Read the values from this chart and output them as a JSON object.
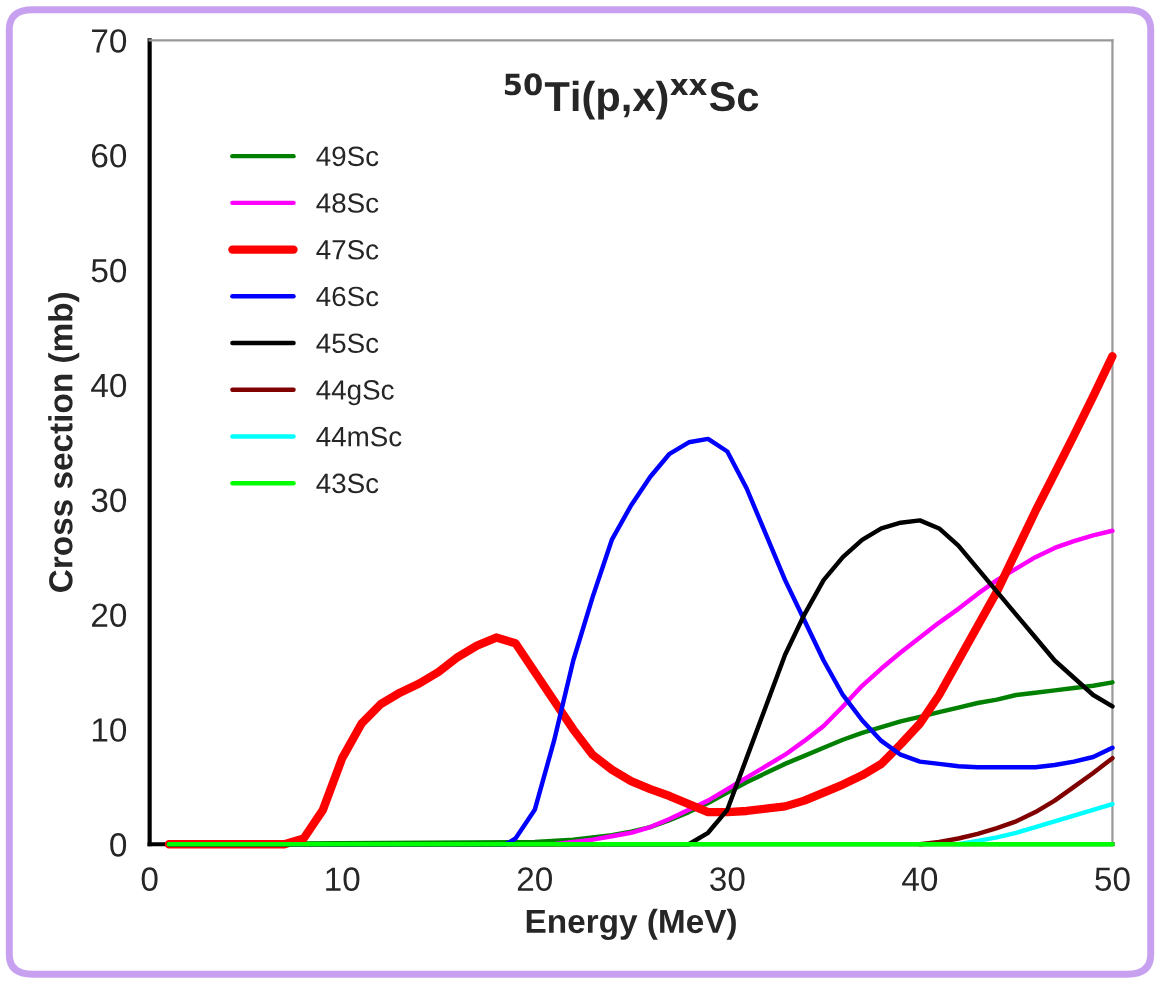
{
  "chart_data": {
    "type": "line",
    "title": "$^{50}$Ti(p,x)$^{xx}$Sc",
    "xlabel": "Energy (MeV)",
    "ylabel": "Cross section (mb)",
    "xlim": [
      0,
      50
    ],
    "xticks": [
      0,
      10,
      20,
      30,
      40,
      50
    ],
    "ylim": [
      0,
      70
    ],
    "yticks": [
      0,
      10,
      20,
      30,
      40,
      50,
      60,
      70
    ],
    "grid": false,
    "legend": "top left",
    "marker": "none",
    "line_style": "solid",
    "series": [
      {
        "name": "49Sc",
        "color": "#008000",
        "x": [
          1,
          20,
          22,
          23,
          24,
          25,
          26,
          27,
          28,
          29,
          30,
          31,
          32,
          33,
          34,
          35,
          36,
          37,
          38,
          39,
          40,
          41,
          42,
          43,
          44,
          45,
          46,
          47,
          48,
          49,
          50
        ],
        "values": [
          0,
          0.2,
          0.4,
          0.6,
          0.8,
          1.1,
          1.5,
          2.1,
          2.8,
          3.6,
          4.5,
          5.4,
          6.2,
          7,
          7.7,
          8.4,
          9.1,
          9.7,
          10.2,
          10.7,
          11.1,
          11.5,
          11.9,
          12.3,
          12.6,
          13,
          13.2,
          13.4,
          13.6,
          13.8,
          14.1
        ]
      },
      {
        "name": "48Sc",
        "color": "#ff00ff",
        "x": [
          1,
          21,
          22,
          23,
          24,
          25,
          26,
          27,
          28,
          29,
          30,
          31,
          32,
          33,
          34,
          35,
          36,
          37,
          38,
          39,
          40,
          41,
          42,
          43,
          44,
          45,
          46,
          47,
          48,
          49,
          50
        ],
        "values": [
          0,
          0,
          0.2,
          0.4,
          0.7,
          1,
          1.5,
          2.2,
          3,
          3.8,
          4.8,
          5.8,
          6.8,
          7.8,
          9,
          10.3,
          12,
          13.8,
          15.3,
          16.7,
          18,
          19.3,
          20.5,
          21.8,
          23,
          24,
          25,
          25.8,
          26.4,
          26.9,
          27.3
        ]
      },
      {
        "name": "47Sc",
        "color": "#ff0000",
        "x": [
          1,
          7,
          8,
          9,
          10,
          11,
          12,
          13,
          14,
          15,
          16,
          17,
          18,
          19,
          20,
          21,
          22,
          23,
          24,
          25,
          26,
          27,
          28,
          29,
          30,
          31,
          32,
          33,
          34,
          35,
          36,
          37,
          38,
          39,
          40,
          41,
          42,
          43,
          44,
          45,
          46,
          47,
          48,
          49,
          50
        ],
        "values": [
          0,
          0,
          0.5,
          3,
          7.5,
          10.5,
          12.2,
          13.2,
          14,
          15,
          16.3,
          17.3,
          18,
          17.5,
          15,
          12.5,
          10,
          7.8,
          6.5,
          5.5,
          4.8,
          4.2,
          3.5,
          2.8,
          2.8,
          2.9,
          3.1,
          3.3,
          3.8,
          4.5,
          5.2,
          6,
          7,
          8.7,
          10.5,
          13,
          16,
          19,
          22,
          25.5,
          29,
          32.3,
          35.6,
          39,
          42.5
        ]
      },
      {
        "name": "46Sc",
        "color": "#0000ff",
        "x": [
          1,
          18.5,
          19,
          20,
          21,
          22,
          23,
          24,
          25,
          26,
          27,
          28,
          29,
          30,
          31,
          32,
          33,
          34,
          35,
          36,
          37,
          38,
          39,
          40,
          41,
          42,
          43,
          44,
          45,
          46,
          47,
          48,
          49,
          50
        ],
        "values": [
          0,
          0,
          0.5,
          3,
          9,
          16,
          21.5,
          26.5,
          29.5,
          32,
          34,
          35,
          35.3,
          34.2,
          31,
          27,
          23,
          19.5,
          16,
          13,
          10.8,
          9,
          7.8,
          7.2,
          7,
          6.8,
          6.7,
          6.7,
          6.7,
          6.7,
          6.9,
          7.2,
          7.6,
          8.4
        ]
      },
      {
        "name": "45Sc",
        "color": "#000000",
        "x": [
          1,
          28,
          29,
          30,
          31,
          32,
          33,
          34,
          35,
          36,
          37,
          38,
          39,
          40,
          41,
          42,
          43,
          44,
          45,
          46,
          47,
          48,
          49,
          50
        ],
        "values": [
          0,
          0,
          1,
          3,
          7.5,
          12,
          16.5,
          20,
          23,
          25,
          26.5,
          27.5,
          28,
          28.2,
          27.5,
          26,
          24,
          22,
          20,
          18,
          16,
          14.5,
          13,
          12
        ]
      },
      {
        "name": "44gSc",
        "color": "#800000",
        "x": [
          40,
          41,
          42,
          43,
          44,
          45,
          46,
          47,
          48,
          49,
          50
        ],
        "values": [
          0,
          0.2,
          0.5,
          0.9,
          1.4,
          2,
          2.8,
          3.8,
          5,
          6.2,
          7.5
        ]
      },
      {
        "name": "44mSc",
        "color": "#00ffff",
        "x": [
          42,
          43,
          44,
          45,
          46,
          47,
          48,
          49,
          50
        ],
        "values": [
          0,
          0.3,
          0.6,
          1,
          1.5,
          2,
          2.5,
          3,
          3.5
        ]
      },
      {
        "name": "43Sc",
        "color": "#00ff00",
        "x": [
          1,
          50
        ],
        "values": [
          0,
          0
        ]
      }
    ]
  }
}
